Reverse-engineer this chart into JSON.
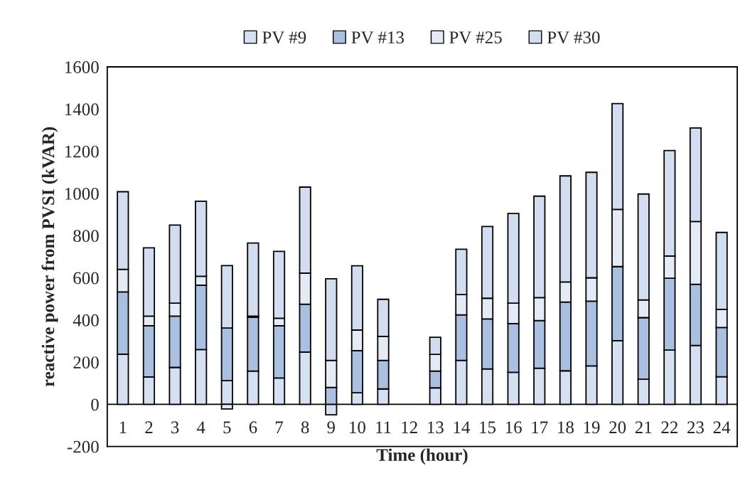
{
  "chart_data": {
    "type": "bar",
    "stacked": true,
    "xlabel": "Time (hour)",
    "ylabel": "reactive power from PVSI (kVAR)",
    "categories": [
      "1",
      "2",
      "3",
      "4",
      "5",
      "6",
      "7",
      "8",
      "9",
      "10",
      "11",
      "12",
      "13",
      "14",
      "15",
      "16",
      "17",
      "18",
      "19",
      "20",
      "21",
      "22",
      "23",
      "24"
    ],
    "series": [
      {
        "name": "PV #9",
        "color": "#d5e0f0",
        "values": [
          238,
          130,
          175,
          260,
          112,
          158,
          125,
          248,
          -50,
          55,
          73,
          0,
          78,
          208,
          168,
          152,
          171,
          159,
          182,
          302,
          119,
          257,
          279,
          131
        ]
      },
      {
        "name": "PV #13",
        "color": "#a9c0e0",
        "values": [
          295,
          243,
          243,
          305,
          250,
          255,
          248,
          227,
          80,
          200,
          135,
          0,
          80,
          216,
          237,
          231,
          226,
          326,
          307,
          351,
          292,
          341,
          290,
          233
        ]
      },
      {
        "name": "PV #25",
        "color": "#e4ebf5",
        "values": [
          107,
          45,
          62,
          42,
          -22,
          5,
          35,
          147,
          128,
          97,
          114,
          0,
          79,
          96,
          98,
          97,
          109,
          95,
          111,
          271,
          84,
          105,
          298,
          86
        ]
      },
      {
        "name": "PV #30",
        "color": "#d2def0",
        "values": [
          368,
          324,
          370,
          356,
          296,
          347,
          317,
          408,
          387,
          305,
          176,
          0,
          81,
          215,
          340,
          425,
          481,
          503,
          500,
          502,
          502,
          500,
          443,
          365
        ]
      }
    ],
    "ylim": [
      -200,
      1600
    ],
    "yticks": [
      -200,
      0,
      200,
      400,
      600,
      800,
      1000,
      1200,
      1400,
      1600
    ],
    "grid": false,
    "legend": "top",
    "ref_lines": [
      {
        "axis": "y",
        "value": 0,
        "color": "#000000"
      }
    ]
  }
}
